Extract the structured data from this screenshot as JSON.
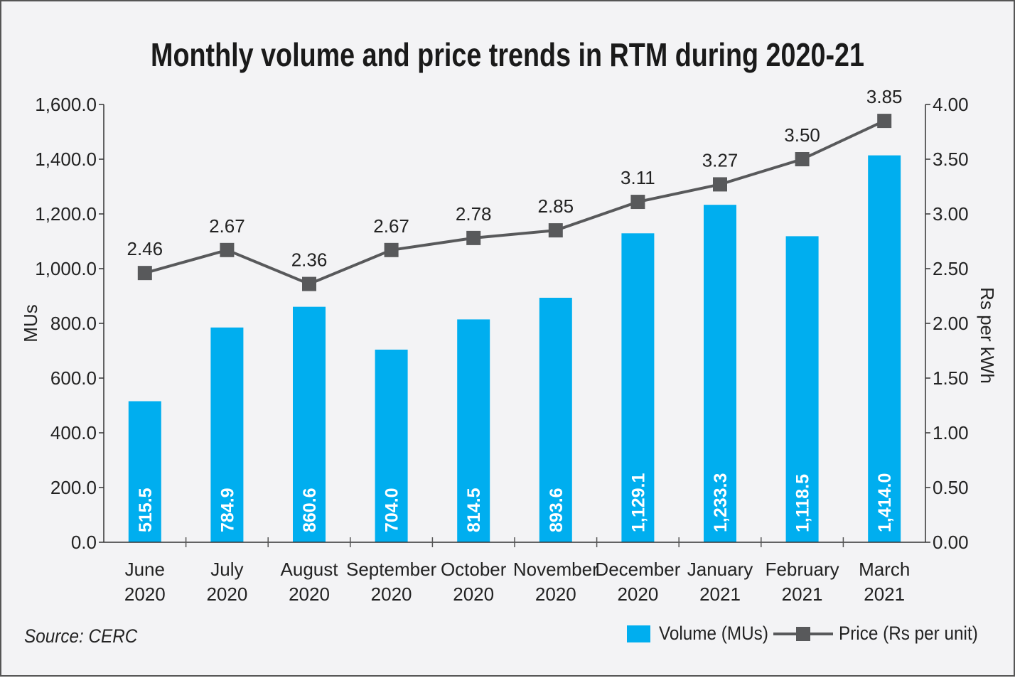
{
  "chart_data": {
    "type": "bar+line",
    "title": "Monthly volume and price trends in RTM during 2020-21",
    "categories": [
      [
        "June",
        "2020"
      ],
      [
        "July",
        "2020"
      ],
      [
        "August",
        "2020"
      ],
      [
        "September",
        "2020"
      ],
      [
        "October",
        "2020"
      ],
      [
        "November",
        "2020"
      ],
      [
        "December",
        "2020"
      ],
      [
        "January",
        "2021"
      ],
      [
        "February",
        "2021"
      ],
      [
        "March",
        "2021"
      ]
    ],
    "series": [
      {
        "name": "Volume (MUs)",
        "type": "bar",
        "axis": "left",
        "color": "#00aeef",
        "values": [
          515.5,
          784.9,
          860.6,
          704.0,
          814.5,
          893.6,
          1129.1,
          1233.3,
          1118.5,
          1414.0
        ],
        "labels": [
          "515.5",
          "784.9",
          "860.6",
          "704.0",
          "814.5",
          "893.6",
          "1,129.1",
          "1,233.3",
          "1,118.5",
          "1,414.0"
        ]
      },
      {
        "name": "Price (Rs per unit)",
        "type": "line",
        "axis": "right",
        "color": "#58595b",
        "values": [
          2.46,
          2.67,
          2.36,
          2.67,
          2.78,
          2.85,
          3.11,
          3.27,
          3.5,
          3.85
        ],
        "labels": [
          "2.46",
          "2.67",
          "2.36",
          "2.67",
          "2.78",
          "2.85",
          "3.11",
          "3.27",
          "3.50",
          "3.85"
        ]
      }
    ],
    "ylabel": "MUs",
    "ylim": [
      0,
      1600
    ],
    "yticks": [
      "0.0",
      "200.0",
      "400.0",
      "600.0",
      "800.0",
      "1,000.0",
      "1,200.0",
      "1,400.0",
      "1,600.0"
    ],
    "y2label": "Rs per kWh",
    "y2lim": [
      0,
      4
    ],
    "y2ticks": [
      "0.00",
      "0.50",
      "1.00",
      "1.50",
      "2.00",
      "2.50",
      "3.00",
      "3.50",
      "4.00"
    ],
    "grid": false,
    "legend": "bottom-right"
  },
  "source": "Source: CERC"
}
